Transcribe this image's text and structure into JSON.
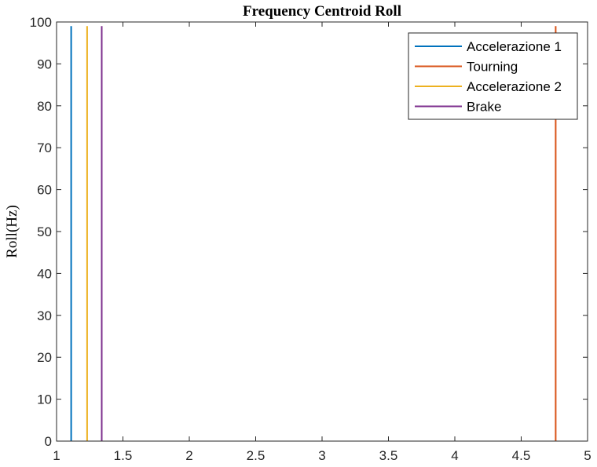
{
  "chart_data": {
    "type": "line",
    "title": "Frequency Centroid Roll",
    "xlabel": "",
    "ylabel": "Roll(Hz)",
    "xlim": [
      1,
      5
    ],
    "ylim": [
      0,
      100
    ],
    "x_ticks": [
      "1",
      "1.5",
      "2",
      "2.5",
      "3",
      "3.5",
      "4",
      "4.5",
      "5"
    ],
    "y_ticks": [
      "0",
      "10",
      "20",
      "30",
      "40",
      "50",
      "60",
      "70",
      "80",
      "90",
      "100"
    ],
    "grid": false,
    "legend_position": "top-right",
    "series": [
      {
        "name": "Accelerazione 1",
        "color": "#0072BD",
        "x": [
          1.11,
          1.11
        ],
        "y": [
          0,
          99
        ]
      },
      {
        "name": "Tourning",
        "color": "#D95319",
        "x": [
          4.76,
          4.76
        ],
        "y": [
          0,
          99
        ]
      },
      {
        "name": "Accelerazione 2",
        "color": "#EDB120",
        "x": [
          1.23,
          1.23
        ],
        "y": [
          0,
          99
        ]
      },
      {
        "name": "Brake",
        "color": "#7E2F8E",
        "x": [
          1.34,
          1.34
        ],
        "y": [
          0,
          99
        ]
      }
    ]
  }
}
